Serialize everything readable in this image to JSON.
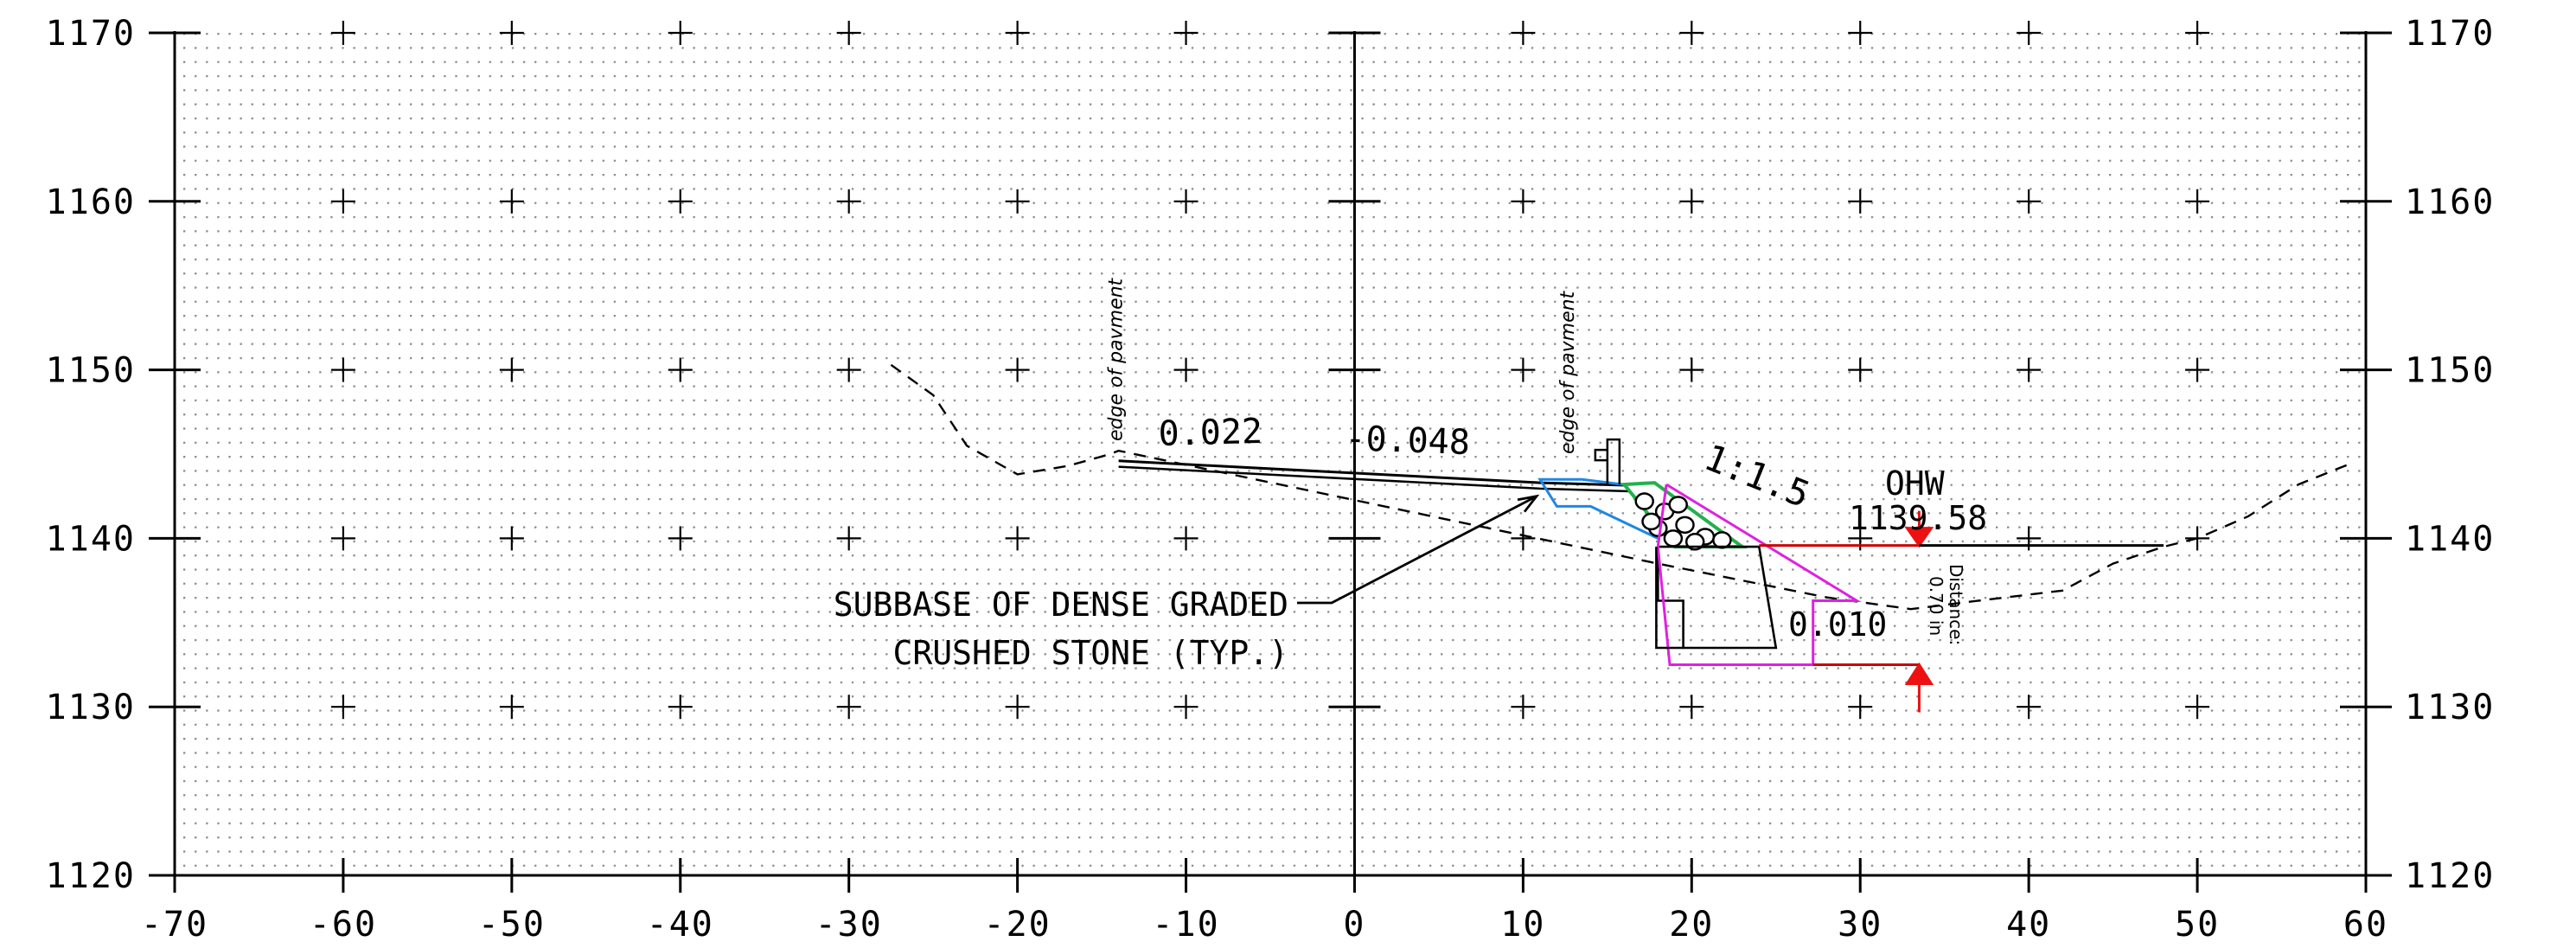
{
  "section": {
    "x_range": [
      -70,
      60
    ],
    "y_range": [
      1120,
      1170
    ],
    "x_grid_step": 10,
    "y_grid_step": 10,
    "x_ticks": [
      "-70",
      "-60",
      "-50",
      "-40",
      "-30",
      "-20",
      "-10",
      "0",
      "10",
      "20",
      "30",
      "40",
      "50",
      "60"
    ],
    "y_ticks": [
      "1120",
      "1130",
      "1140",
      "1150",
      "1160",
      "1170"
    ],
    "grid_dots": true
  },
  "labels": {
    "edge_left": "edge of pavment",
    "edge_right": "edge of pavment",
    "slope_left": "0.022",
    "slope_center": "-0.048",
    "side_slope": "1:1.5",
    "ohw_title": "OHW",
    "ohw_elev": "1139.58",
    "bottom_slope": "0.010",
    "distance_label": "Distance:",
    "distance_value": "0.70 in",
    "subbase_line1": "SUBBASE OF DENSE GRADED",
    "subbase_line2": "CRUSHED STONE (TYP.)"
  },
  "geometry": {
    "existing_ground": [
      [
        -27.5,
        1150.3
      ],
      [
        -25,
        1148.5
      ],
      [
        -23,
        1145.5
      ],
      [
        -20,
        1143.8
      ],
      [
        -17,
        1144.3
      ],
      [
        -14.5,
        1145.0
      ],
      [
        -14,
        1145.2
      ],
      [
        18,
        1138.5
      ],
      [
        23,
        1137.5
      ],
      [
        28,
        1136.5
      ],
      [
        33,
        1135.8
      ],
      [
        37,
        1136.3
      ],
      [
        42,
        1136.9
      ],
      [
        45,
        1138.5
      ],
      [
        48,
        1139.5
      ],
      [
        50,
        1140.0
      ],
      [
        53,
        1141.3
      ],
      [
        56,
        1143.2
      ],
      [
        59,
        1144.4
      ]
    ],
    "pavement": [
      [
        -14,
        1144.6
      ],
      [
        11,
        1143.3
      ],
      [
        17.8,
        1143.1
      ]
    ],
    "subbase": [
      [
        11,
        1143.5
      ],
      [
        13.5,
        1143.5
      ],
      [
        17.5,
        1143.0
      ],
      [
        18,
        1140
      ],
      [
        14,
        1141.9
      ],
      [
        12,
        1141.9
      ],
      [
        11,
        1143.5
      ]
    ],
    "riprap": [
      [
        16,
        1143.2
      ],
      [
        17.8,
        1143.3
      ],
      [
        23,
        1139.5
      ],
      [
        19,
        1139.5
      ],
      [
        16,
        1143.2
      ]
    ],
    "culvert_outline": [
      [
        18,
        1139.5
      ],
      [
        24,
        1139.5
      ],
      [
        25,
        1133.5
      ],
      [
        19.5,
        1133.5
      ],
      [
        19.5,
        1136.3
      ],
      [
        18,
        1136.3
      ],
      [
        18,
        1139.5
      ]
    ],
    "magenta_envelope": [
      [
        18.5,
        1143.2
      ],
      [
        29.8,
        1136.3
      ],
      [
        27.2,
        1136.3
      ],
      [
        27.2,
        1132.5
      ],
      [
        18.7,
        1132.5
      ],
      [
        18,
        1139.5
      ],
      [
        18.5,
        1143.2
      ]
    ],
    "water_line": [
      [
        24,
        1139.58
      ],
      [
        48,
        1139.58
      ]
    ],
    "distance_marker_x": 33.5,
    "lower_marker_elev": 1132.5
  },
  "colors": {
    "pavement": "#000000",
    "subbase": "#1e88e5",
    "riprap": "#22b14c",
    "culvert": "#000000",
    "envelope": "#e020e0",
    "water": "#cc0000",
    "marker": "#ee1111",
    "ground": "#000000"
  }
}
